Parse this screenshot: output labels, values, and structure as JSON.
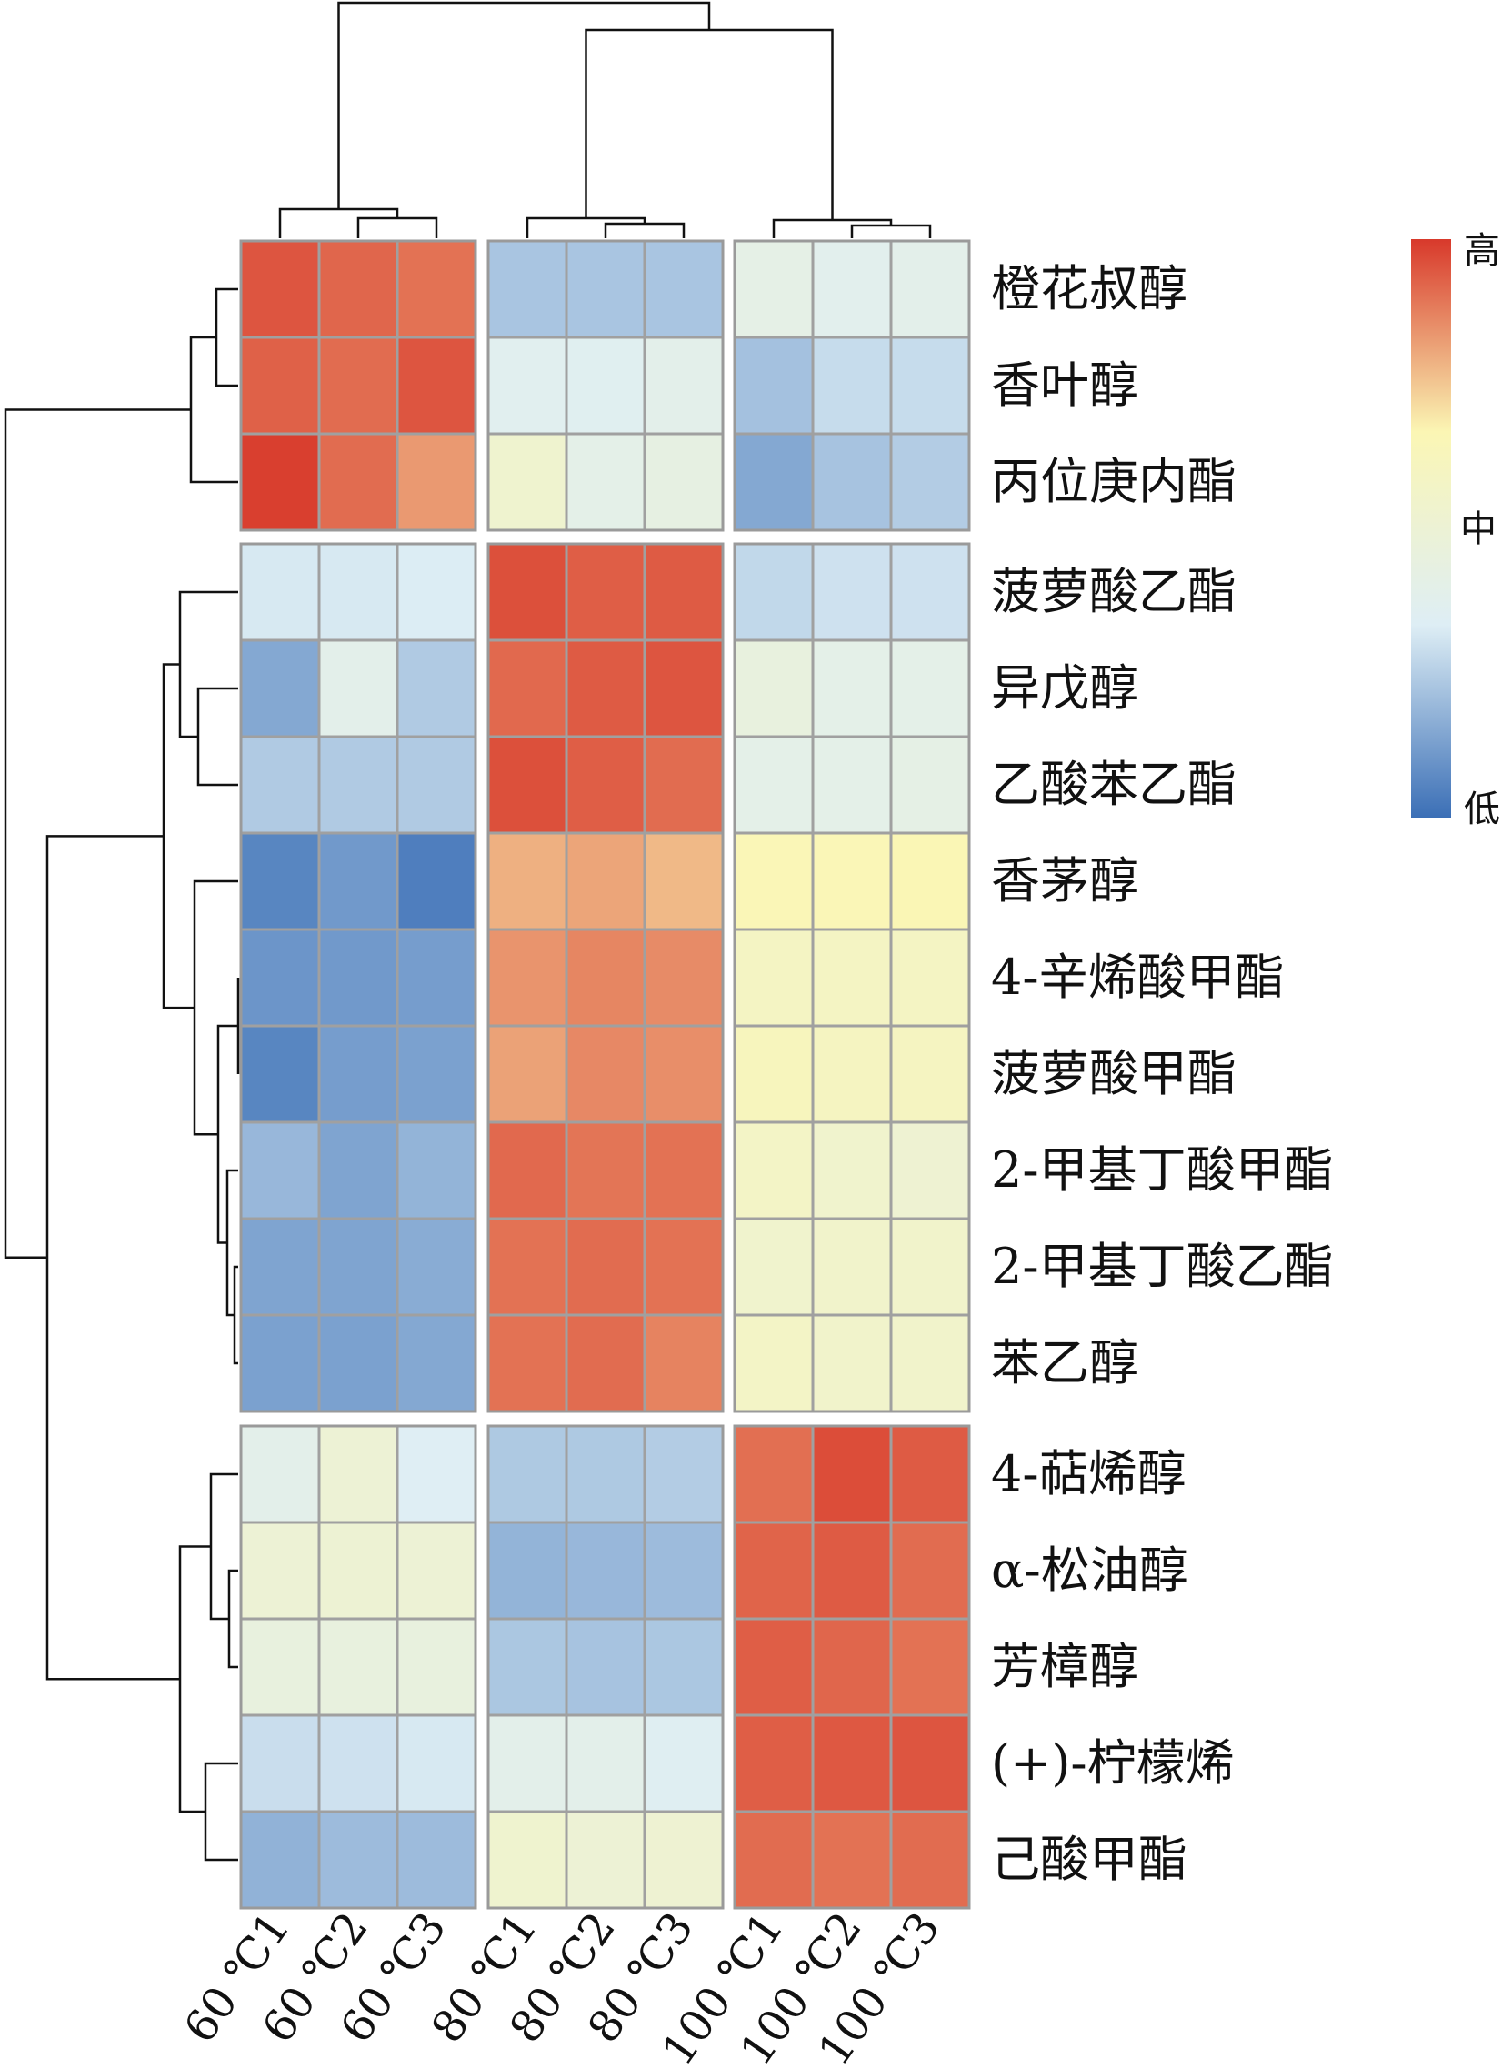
{
  "chart_data": {
    "type": "heatmap",
    "title": "",
    "columns": [
      "60 ℃1",
      "60 ℃2",
      "60 ℃3",
      "80 ℃1",
      "80 ℃2",
      "80 ℃3",
      "100 ℃1",
      "100 ℃2",
      "100 ℃3"
    ],
    "rows": [
      "橙花叔醇",
      "香叶醇",
      "丙位庚内酯",
      "菠萝酸乙酯",
      "异戊醇",
      "乙酸苯乙酯",
      "香茅醇",
      "4-辛烯酸甲酯",
      "菠萝酸甲酯",
      "2-甲基丁酸甲酯",
      "2-甲基丁酸乙酯",
      "苯乙醇",
      "4-萜烯醇",
      "α-松油醇",
      "芳樟醇",
      "(+)-柠檬烯",
      "己酸甲酯"
    ],
    "row_groups": [
      3,
      9,
      5
    ],
    "column_groups": [
      3,
      3,
      3
    ],
    "value_scale": [
      -1,
      1
    ],
    "values": [
      [
        0.9,
        0.84,
        0.8,
        -0.55,
        -0.55,
        -0.55,
        -0.18,
        -0.25,
        -0.22
      ],
      [
        0.86,
        0.82,
        0.9,
        -0.27,
        -0.28,
        -0.22,
        -0.57,
        -0.43,
        -0.43
      ],
      [
        0.98,
        0.82,
        0.66,
        0.06,
        -0.2,
        -0.14,
        -0.7,
        -0.56,
        -0.51
      ],
      [
        -0.36,
        -0.36,
        -0.34,
        0.92,
        0.87,
        0.88,
        -0.45,
        -0.4,
        -0.4
      ],
      [
        -0.7,
        -0.22,
        -0.52,
        0.83,
        0.88,
        0.9,
        -0.1,
        -0.2,
        -0.2
      ],
      [
        -0.52,
        -0.52,
        -0.52,
        0.92,
        0.87,
        0.82,
        -0.2,
        -0.2,
        -0.17
      ],
      [
        -0.88,
        -0.78,
        -0.92,
        0.58,
        0.62,
        0.55,
        0.3,
        0.3,
        0.32
      ],
      [
        -0.8,
        -0.78,
        -0.76,
        0.68,
        0.73,
        0.71,
        0.18,
        0.18,
        0.18
      ],
      [
        -0.88,
        -0.76,
        -0.74,
        0.63,
        0.72,
        0.7,
        0.24,
        0.2,
        0.2
      ],
      [
        -0.62,
        -0.72,
        -0.64,
        0.83,
        0.79,
        0.8,
        0.15,
        0.08,
        0.03
      ],
      [
        -0.72,
        -0.72,
        -0.68,
        0.8,
        0.82,
        0.8,
        0.08,
        0.1,
        0.1
      ],
      [
        -0.74,
        -0.74,
        -0.7,
        0.8,
        0.82,
        0.74,
        0.15,
        0.1,
        0.1
      ],
      [
        -0.22,
        0.0,
        -0.32,
        -0.53,
        -0.53,
        -0.51,
        0.81,
        0.93,
        0.88
      ],
      [
        0.0,
        0.02,
        0.0,
        -0.64,
        -0.62,
        -0.6,
        0.85,
        0.88,
        0.82
      ],
      [
        -0.1,
        -0.1,
        -0.1,
        -0.54,
        -0.56,
        -0.54,
        0.87,
        0.84,
        0.8
      ],
      [
        -0.42,
        -0.4,
        -0.36,
        -0.22,
        -0.22,
        -0.3,
        0.87,
        0.89,
        0.9
      ],
      [
        -0.65,
        -0.6,
        -0.6,
        0.06,
        0.0,
        0.03,
        0.82,
        0.8,
        0.82
      ]
    ],
    "colorbar": {
      "colors": [
        "#3b6fb6",
        "#deeef5",
        "#fbf6b4",
        "#d8392b"
      ],
      "labels": {
        "high": "高",
        "mid": "中",
        "low": "低"
      }
    },
    "dendrograms": [
      "rows",
      "columns"
    ],
    "grid": false
  }
}
